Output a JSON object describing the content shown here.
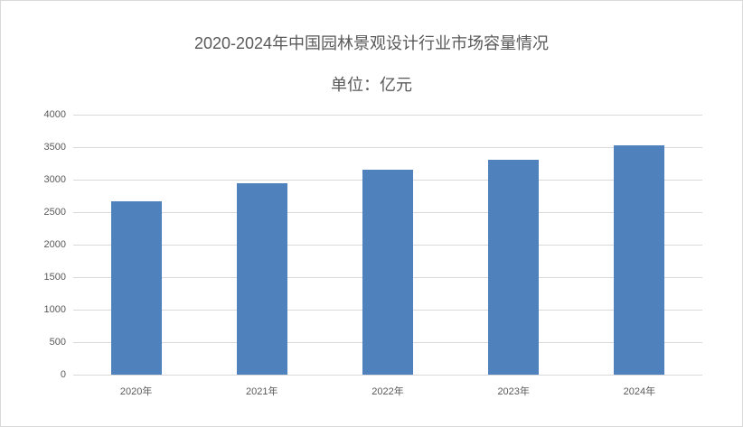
{
  "chart_data": {
    "type": "bar",
    "title": "2020-2024年中国园林景观设计行业市场容量情况",
    "subtitle": "单位：亿元",
    "xlabel": "",
    "ylabel": "",
    "categories": [
      "2020年",
      "2021年",
      "2022年",
      "2023年",
      "2024年"
    ],
    "values": [
      2667,
      2944,
      3153,
      3306,
      3528
    ],
    "ylim": [
      0,
      4000
    ],
    "yticks": [
      "0",
      "500",
      "1000",
      "1500",
      "2000",
      "2500",
      "3000",
      "3500",
      "4000"
    ],
    "grid": true,
    "legend": null,
    "bar_color": "#4f81bd"
  }
}
